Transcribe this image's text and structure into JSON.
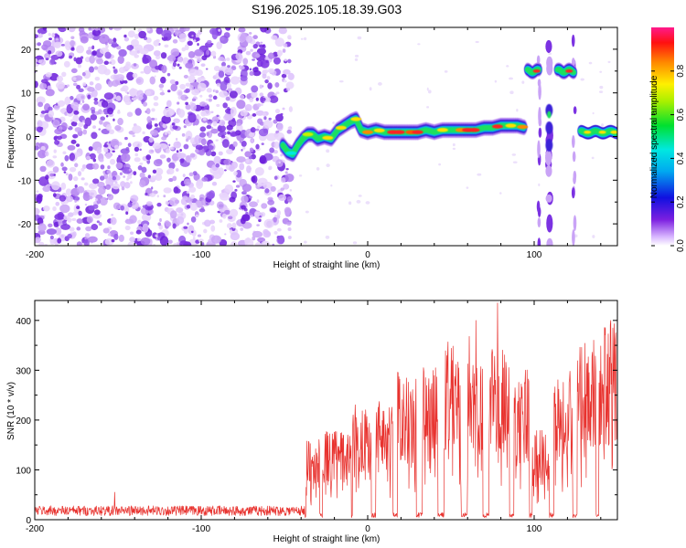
{
  "title": "S196.2025.105.18.39.G03",
  "chart_data": [
    {
      "type": "heatmap",
      "name": "spectrogram",
      "xlabel": "Height of straight line (km)",
      "ylabel": "Frequency (Hz)",
      "xlim": [
        -200,
        150
      ],
      "ylim": [
        -25,
        25
      ],
      "xticks": [
        -200,
        -100,
        0,
        100
      ],
      "yticks": [
        -20,
        -10,
        0,
        10,
        20
      ],
      "colorbar": {
        "label": "Normalized spectral amplitude",
        "range": [
          0,
          1
        ],
        "ticks": [
          "0.0",
          "0.2",
          "0.4",
          "0.6",
          "0.8"
        ]
      },
      "noise_region_x": [
        -200,
        -50
      ],
      "main_trace": [
        {
          "x": -51,
          "f": -2
        },
        {
          "x": -48,
          "f": -3.5
        },
        {
          "x": -45,
          "f": -4
        },
        {
          "x": -42,
          "f": -2
        },
        {
          "x": -39,
          "f": -0.5
        },
        {
          "x": -36,
          "f": 0.5
        },
        {
          "x": -33,
          "f": 0.5
        },
        {
          "x": -30,
          "f": -0.5
        },
        {
          "x": -26,
          "f": 0
        },
        {
          "x": -22,
          "f": -0.5
        },
        {
          "x": -18,
          "f": 1.5
        },
        {
          "x": -14,
          "f": 2.5
        },
        {
          "x": -10,
          "f": 3.5
        },
        {
          "x": -7,
          "f": 4
        },
        {
          "x": -4,
          "f": 1.5
        },
        {
          "x": 0,
          "f": 1
        },
        {
          "x": 5,
          "f": 1.5
        },
        {
          "x": 10,
          "f": 1
        },
        {
          "x": 15,
          "f": 1
        },
        {
          "x": 20,
          "f": 1
        },
        {
          "x": 25,
          "f": 1
        },
        {
          "x": 30,
          "f": 1
        },
        {
          "x": 35,
          "f": 1.5
        },
        {
          "x": 40,
          "f": 1
        },
        {
          "x": 45,
          "f": 1.5
        },
        {
          "x": 50,
          "f": 1.5
        },
        {
          "x": 55,
          "f": 1.5
        },
        {
          "x": 60,
          "f": 1.5
        },
        {
          "x": 65,
          "f": 1.5
        },
        {
          "x": 70,
          "f": 2
        },
        {
          "x": 75,
          "f": 2
        },
        {
          "x": 80,
          "f": 2.5
        },
        {
          "x": 85,
          "f": 2.5
        },
        {
          "x": 90,
          "f": 2.5
        },
        {
          "x": 95,
          "f": 2
        }
      ],
      "upper_tones": [
        {
          "x_start": 96,
          "x_end": 103,
          "f": 15
        },
        {
          "x_start": 114,
          "x_end": 124,
          "f": 15
        }
      ],
      "right_trace": {
        "x_start": 128,
        "x_end": 150,
        "f": 1
      },
      "vertical_streaks": [
        103,
        109,
        124
      ]
    },
    {
      "type": "line",
      "name": "snr",
      "xlabel": "Height of straight line (km)",
      "ylabel": "SNR (10 * v/v)",
      "xlim": [
        -200,
        150
      ],
      "ylim": [
        0,
        440
      ],
      "xticks": [
        -200,
        -100,
        0,
        100
      ],
      "yticks": [
        0,
        100,
        200,
        300,
        400
      ],
      "color": "#e8322e",
      "segments": [
        {
          "x_start": -200,
          "x_end": -38,
          "level": 20
        },
        {
          "x_start": -37,
          "x_end": -29,
          "level": 135
        },
        {
          "x_start": -27,
          "x_end": -10,
          "level": 150
        },
        {
          "x_start": -9,
          "x_end": 2,
          "level": 200
        },
        {
          "x_start": 5,
          "x_end": 15,
          "level": 210
        },
        {
          "x_start": 18,
          "x_end": 29,
          "level": 250
        },
        {
          "x_start": 33,
          "x_end": 42,
          "level": 260
        },
        {
          "x_start": 46,
          "x_end": 56,
          "level": 300
        },
        {
          "x_start": 60,
          "x_end": 69,
          "level": 310
        },
        {
          "x_start": 73,
          "x_end": 85,
          "level": 300
        },
        {
          "x_start": 88,
          "x_end": 97,
          "level": 260
        },
        {
          "x_start": 99,
          "x_end": 109,
          "level": 150
        },
        {
          "x_start": 112,
          "x_end": 123,
          "level": 260
        },
        {
          "x_start": 126,
          "x_end": 137,
          "level": 320
        },
        {
          "x_start": 139,
          "x_end": 150,
          "level": 330
        }
      ],
      "peaks": [
        {
          "x": -152,
          "y": 55
        },
        {
          "x": 65,
          "y": 400
        },
        {
          "x": 78,
          "y": 435
        },
        {
          "x": 146,
          "y": 400
        }
      ]
    }
  ]
}
